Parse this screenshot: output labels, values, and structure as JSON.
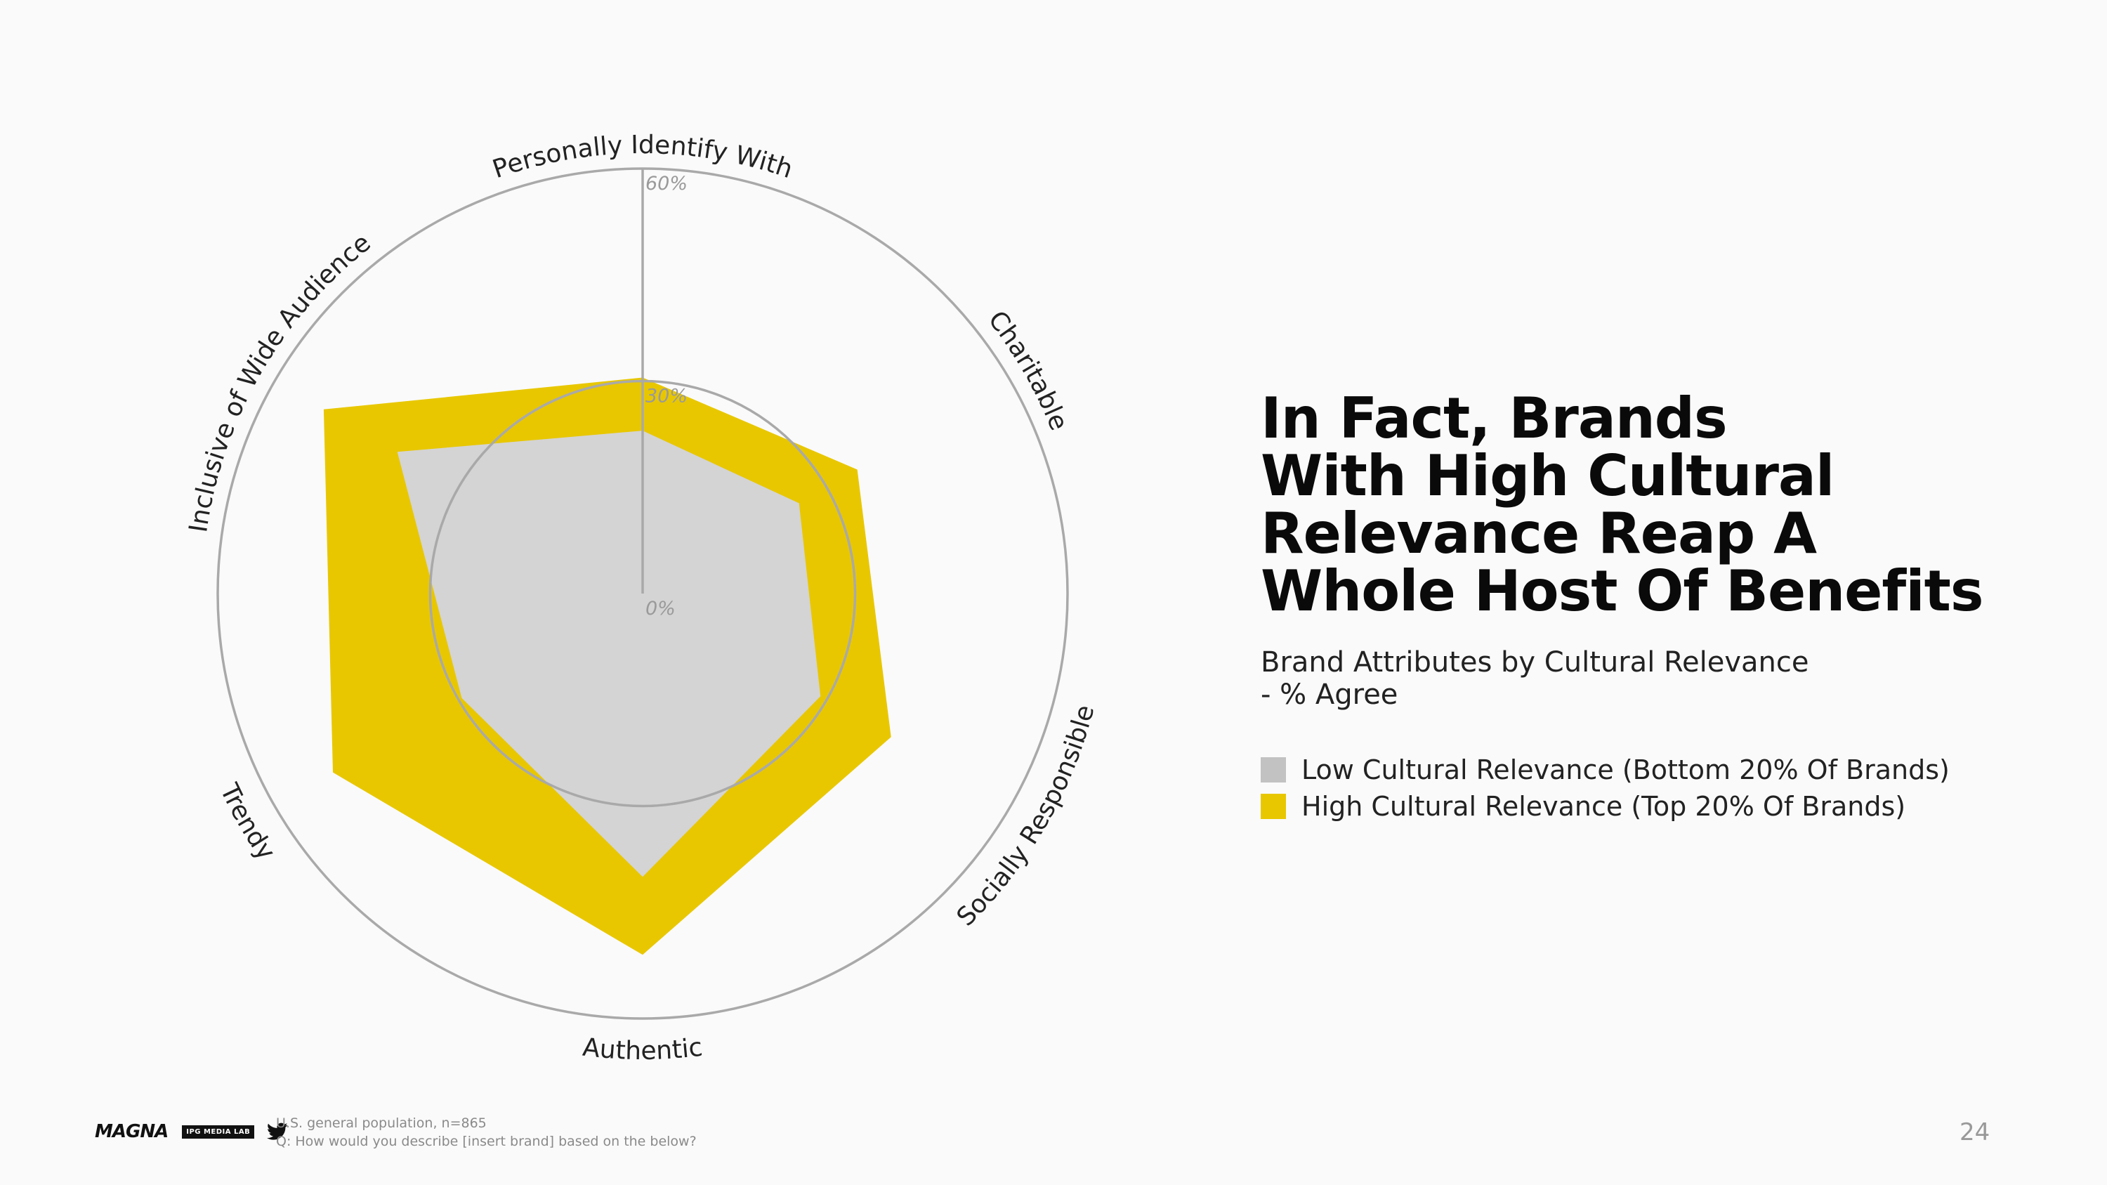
{
  "slide": {
    "title_lines": [
      "In Fact, Brands",
      "With High Cultural",
      "Relevance Reap A",
      "Whole Host Of Benefits"
    ],
    "subtitle_lines": [
      "Brand Attributes by Cultural Relevance",
      "- % Agree"
    ],
    "legend": [
      {
        "label": "Low Cultural Relevance (Bottom 20% Of Brands)",
        "color": "#c2c2c2"
      },
      {
        "label": "High Cultural Relevance (Top 20% Of Brands)",
        "color": "#e8c700"
      }
    ],
    "footnote_lines": [
      "U.S. general population, n=865",
      "Q: How would you describe [insert brand] based on the below?"
    ],
    "page_number": "24",
    "logos": {
      "magna": "MAGNA",
      "ipg": "IPG MEDIA LAB",
      "twitter_icon": "twitter-bird-icon"
    }
  },
  "chart_data": {
    "type": "radar",
    "axes": [
      "Personally Identify With",
      "Charitable",
      "Socially Responsible",
      "Authentic",
      "Trendy",
      "Inclusive of Wide Audience"
    ],
    "tick_labels": [
      "0%",
      "30%",
      "60%"
    ],
    "ticks": [
      0,
      30,
      60
    ],
    "rmax": 60,
    "series": [
      {
        "name": "High Cultural Relevance (Top 20% Of Brands)",
        "color": "#e8c700",
        "values": [
          30.5,
          35,
          40.5,
          51,
          50.5,
          52
        ]
      },
      {
        "name": "Low Cultural Relevance (Bottom 20% Of Brands)",
        "color": "#d4d4d4",
        "values": [
          23,
          25.5,
          29,
          40,
          29.5,
          40
        ]
      }
    ],
    "legend_position": "right"
  }
}
